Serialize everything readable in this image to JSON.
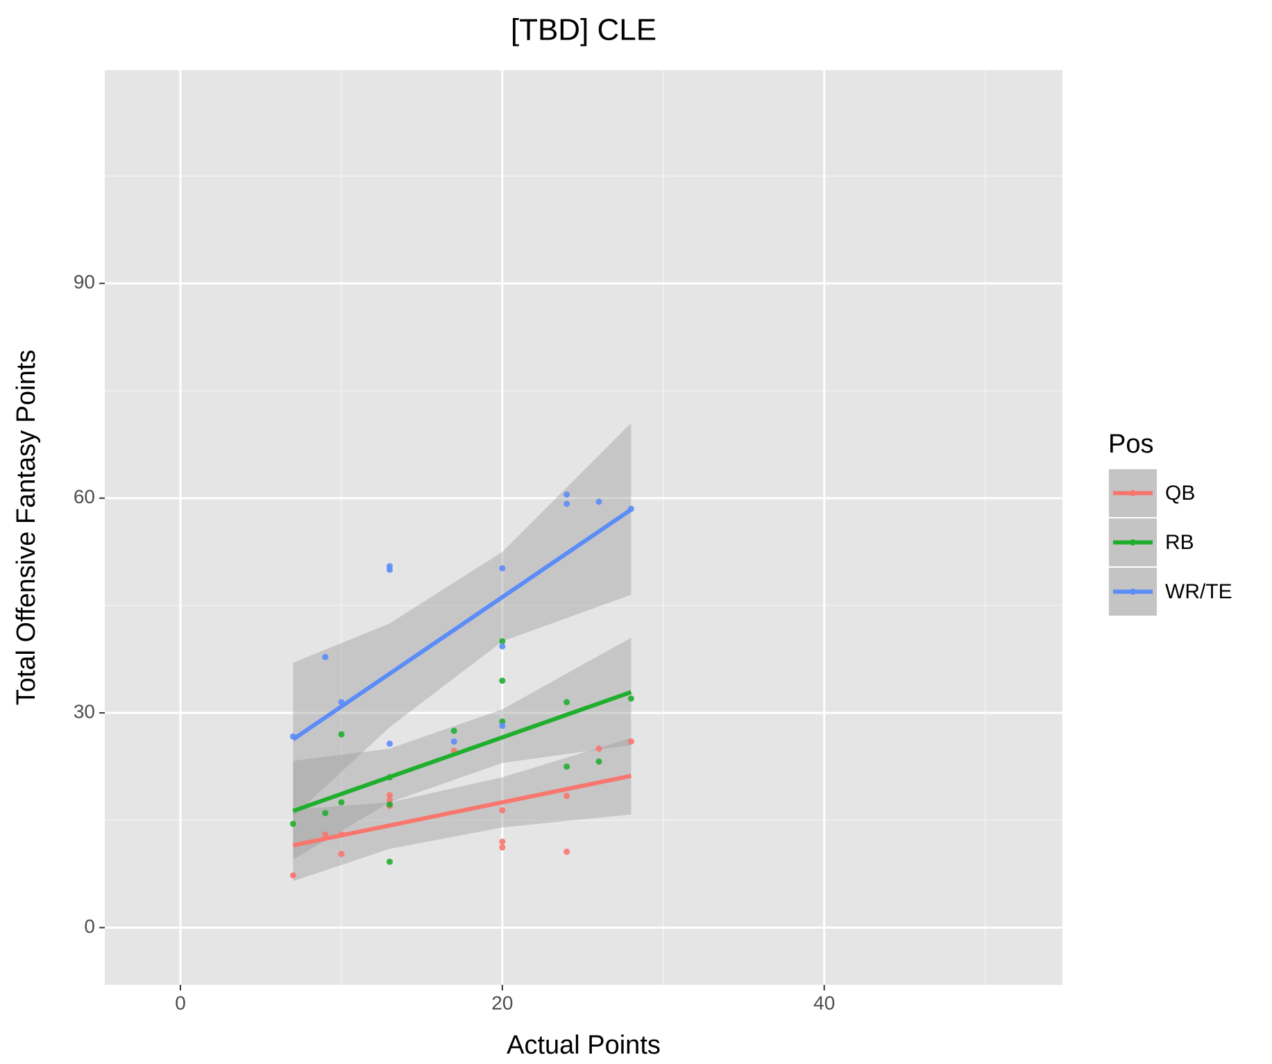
{
  "chart_data": {
    "type": "scatter",
    "title": "[TBD] CLE",
    "x_label": "Actual Points",
    "y_label": "Total Offensive Fantasy Points",
    "legend_title": "Pos",
    "legend_position": "right",
    "grid": true,
    "panel_background": "#e5e5e5",
    "xlim": [
      -4.7,
      54.8
    ],
    "ylim": [
      -8,
      119.8
    ],
    "xticks": [
      0,
      20,
      40
    ],
    "yticks": [
      0,
      30,
      60,
      90
    ],
    "x_minor_breaks": [
      10,
      30,
      50
    ],
    "y_minor_breaks": [
      15,
      45,
      75,
      105
    ],
    "series": [
      {
        "name": "QB",
        "color": "#f8766d",
        "x": [
          7,
          9,
          10,
          10,
          13,
          13,
          13,
          17,
          20,
          20,
          20,
          24,
          24,
          26,
          28
        ],
        "values": [
          7.3,
          13,
          13,
          10.3,
          18.5,
          17.8,
          17,
          24.7,
          16.4,
          12,
          11.2,
          18.4,
          10.6,
          25,
          26
        ],
        "fit": {
          "x": [
            7,
            28
          ],
          "values": [
            11.5,
            21.2
          ]
        },
        "band": {
          "x": [
            7,
            13,
            20,
            28
          ],
          "lower": [
            6.5,
            11,
            14,
            15.8
          ],
          "upper": [
            16.5,
            17.5,
            21,
            26.5
          ]
        }
      },
      {
        "name": "RB",
        "color": "#1fae2d",
        "x": [
          7,
          9,
          10,
          10,
          13,
          13,
          13,
          17,
          20,
          20,
          20,
          24,
          24,
          26,
          28
        ],
        "values": [
          14.5,
          16,
          17.5,
          27,
          21,
          17.2,
          9.2,
          27.5,
          40,
          34.5,
          28.8,
          31.5,
          22.5,
          23.2,
          32
        ],
        "fit": {
          "x": [
            7,
            28
          ],
          "values": [
            16.3,
            32.9
          ]
        },
        "band": {
          "x": [
            7,
            13,
            20,
            28
          ],
          "lower": [
            9.5,
            17.5,
            23,
            25.5
          ],
          "upper": [
            23.3,
            25,
            30.5,
            40.5
          ]
        }
      },
      {
        "name": "WR/TE",
        "color": "#5b8cf8",
        "x": [
          7,
          9,
          10,
          13,
          13,
          13,
          17,
          20,
          20,
          20,
          24,
          24,
          26,
          28
        ],
        "values": [
          26.7,
          37.8,
          31.5,
          50.5,
          50,
          25.7,
          26,
          50.2,
          39.3,
          28.2,
          60.5,
          59.2,
          59.5,
          58.5
        ],
        "fit": {
          "x": [
            7,
            28
          ],
          "values": [
            26.3,
            58.4
          ]
        },
        "band": {
          "x": [
            7,
            13,
            20,
            28
          ],
          "lower": [
            15.5,
            28,
            40,
            46.5
          ],
          "upper": [
            37,
            42.5,
            52.5,
            70.5
          ]
        }
      }
    ]
  }
}
